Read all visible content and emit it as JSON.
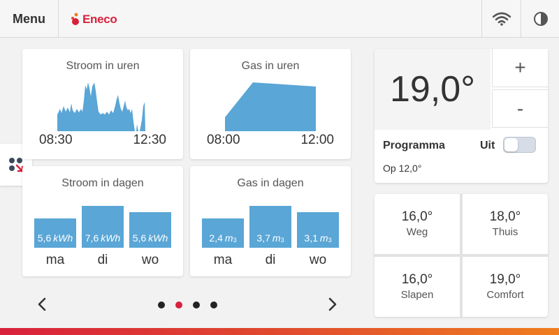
{
  "topbar": {
    "menu_label": "Menu",
    "logo_text": "Eneco",
    "wifi_icon": "wifi-icon",
    "theme_icon": "half-moon-icon"
  },
  "side_tab": {
    "icon": "apps-icon"
  },
  "cards": {
    "stroom_uren": {
      "title": "Stroom in uren",
      "start": "08:30",
      "end": "12:30"
    },
    "gas_uren": {
      "title": "Gas in uren",
      "start": "08:00",
      "end": "12:00"
    },
    "stroom_dagen": {
      "title": "Stroom in dagen",
      "bars": [
        {
          "value": "5,6",
          "unit": "kWh",
          "day": "ma"
        },
        {
          "value": "7,6",
          "unit": "kWh",
          "day": "di"
        },
        {
          "value": "5,6",
          "unit": "kWh",
          "day": "wo"
        }
      ]
    },
    "gas_dagen": {
      "title": "Gas in dagen",
      "bars": [
        {
          "value": "2,4",
          "unit": "m",
          "sup": "3",
          "day": "ma"
        },
        {
          "value": "3,7",
          "unit": "m",
          "sup": "3",
          "day": "di"
        },
        {
          "value": "3,1",
          "unit": "m",
          "sup": "3",
          "day": "wo"
        }
      ]
    }
  },
  "thermostat": {
    "current": "19,0°",
    "plus": "+",
    "minus": "-",
    "program_label": "Programma",
    "program_state": "Uit",
    "program_sub": "Op 12,0°",
    "presets": [
      {
        "temp": "16,0°",
        "name": "Weg"
      },
      {
        "temp": "18,0°",
        "name": "Thuis"
      },
      {
        "temp": "16,0°",
        "name": "Slapen"
      },
      {
        "temp": "19,0°",
        "name": "Comfort"
      }
    ]
  },
  "pager": {
    "active_page": 2,
    "pages": 4
  },
  "colors": {
    "accent": "#d8213b",
    "chart": "#5aa6d6"
  }
}
